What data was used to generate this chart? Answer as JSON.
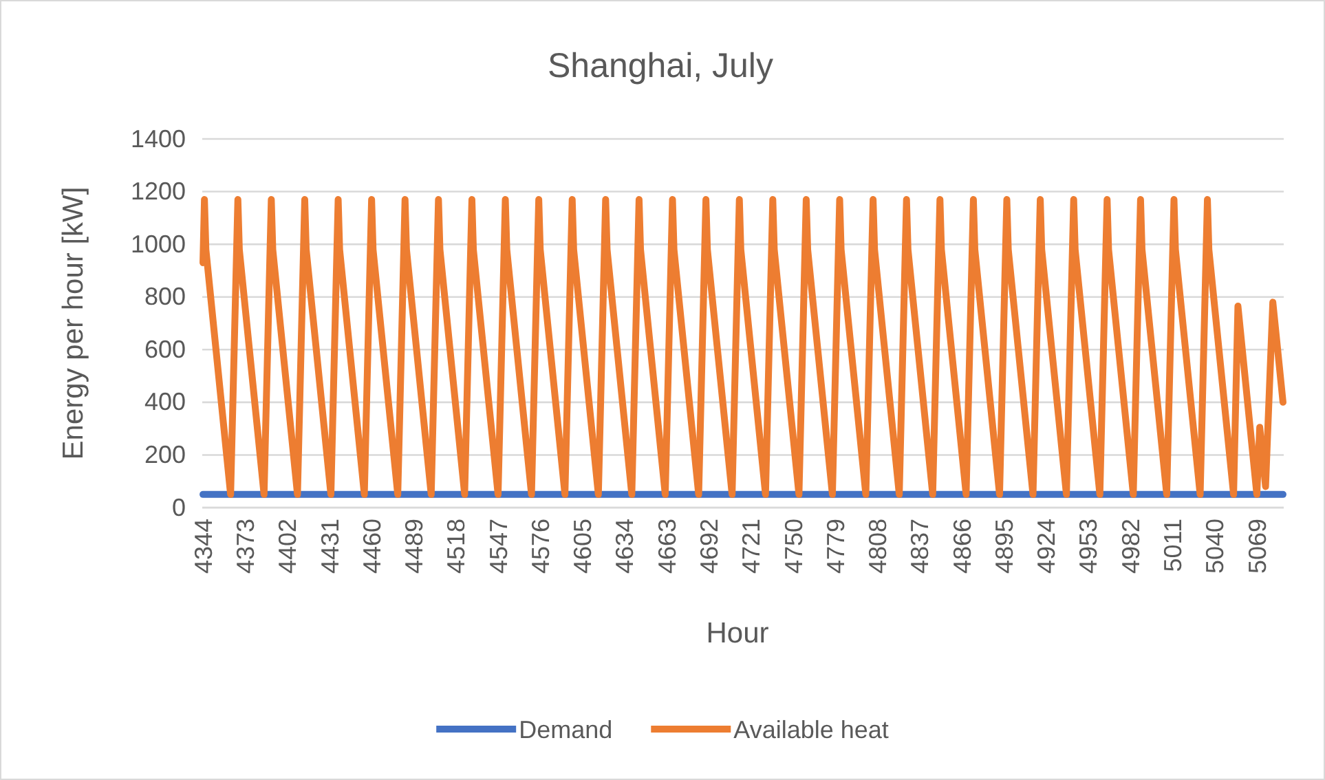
{
  "chart_data": {
    "type": "line",
    "title": "Shanghai, July",
    "xlabel": "Hour",
    "ylabel": "Energy per hour [kW]",
    "xlim": [
      4343.5,
      5087.5
    ],
    "xticks": [
      4344,
      4373,
      4402,
      4431,
      4460,
      4489,
      4518,
      4547,
      4576,
      4605,
      4634,
      4663,
      4692,
      4721,
      4750,
      4779,
      4808,
      4837,
      4866,
      4895,
      4924,
      4953,
      4982,
      5011,
      5040,
      5069
    ],
    "ylim": [
      0,
      1400
    ],
    "yticks": [
      0,
      200,
      400,
      600,
      800,
      1000,
      1200,
      1400
    ],
    "grid": "y",
    "legend": "bottom",
    "marker": "none",
    "line_style": "solid",
    "series": [
      {
        "name": "Demand",
        "color": "#4472c4",
        "x": [
          4344,
          5087
        ],
        "values": [
          50,
          50
        ]
      },
      {
        "name": "Available heat",
        "color": "#ed7d31",
        "x": [
          4344,
          4345,
          4346,
          4363,
          4368,
          4369,
          4386,
          4391,
          4392,
          4409,
          4414,
          4415,
          4432,
          4437,
          4438,
          4455,
          4460,
          4461,
          4478,
          4483,
          4484,
          4501,
          4506,
          4507,
          4524,
          4529,
          4530,
          4547,
          4552,
          4553,
          4570,
          4575,
          4576,
          4593,
          4598,
          4599,
          4616,
          4621,
          4622,
          4639,
          4644,
          4645,
          4662,
          4667,
          4668,
          4685,
          4690,
          4691,
          4708,
          4713,
          4714,
          4731,
          4736,
          4737,
          4754,
          4759,
          4760,
          4777,
          4782,
          4783,
          4800,
          4805,
          4806,
          4823,
          4828,
          4829,
          4846,
          4851,
          4852,
          4869,
          4874,
          4875,
          4892,
          4897,
          4898,
          4915,
          4920,
          4921,
          4938,
          4943,
          4944,
          4961,
          4966,
          4967,
          4984,
          4989,
          4990,
          5007,
          5012,
          5013,
          5030,
          5035,
          5036,
          5053,
          5056,
          5069,
          5071,
          5075,
          5080,
          5087
        ],
        "values": [
          930,
          1170,
          980,
          50,
          1170,
          980,
          50,
          1170,
          980,
          50,
          1170,
          980,
          50,
          1170,
          980,
          50,
          1170,
          980,
          50,
          1170,
          980,
          50,
          1170,
          980,
          50,
          1170,
          980,
          50,
          1170,
          980,
          50,
          1170,
          980,
          50,
          1170,
          980,
          50,
          1170,
          980,
          50,
          1170,
          980,
          50,
          1170,
          980,
          50,
          1170,
          980,
          50,
          1170,
          980,
          50,
          1170,
          980,
          50,
          1170,
          980,
          50,
          1170,
          980,
          50,
          1170,
          980,
          50,
          1170,
          980,
          50,
          1170,
          980,
          50,
          1170,
          980,
          50,
          1170,
          980,
          50,
          1170,
          980,
          50,
          1170,
          980,
          50,
          1170,
          980,
          50,
          1170,
          980,
          50,
          1170,
          980,
          50,
          1170,
          980,
          50,
          765,
          50,
          305,
          80,
          780,
          400
        ]
      }
    ]
  }
}
